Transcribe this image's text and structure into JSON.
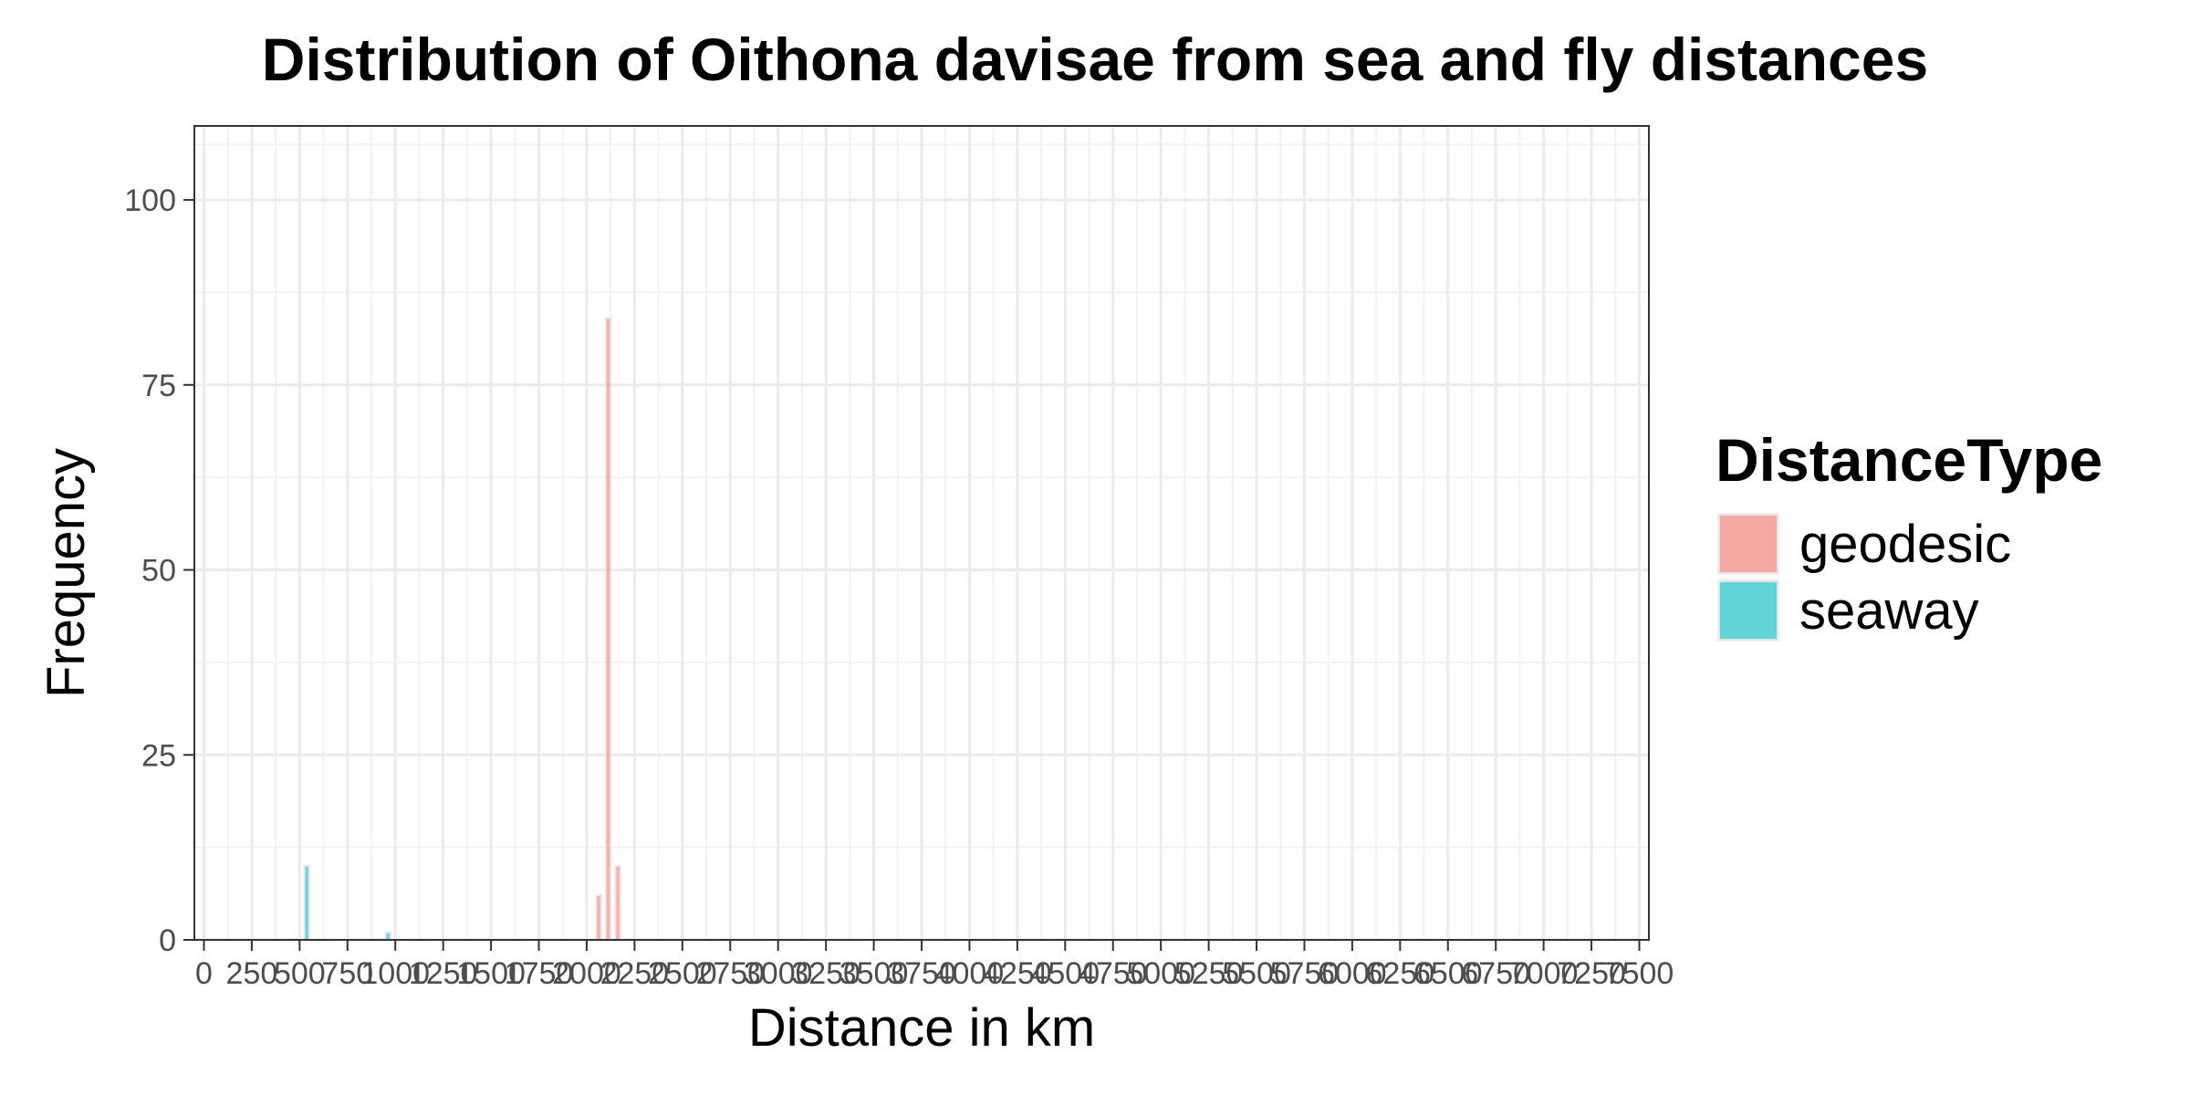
{
  "chart_data": {
    "type": "bar",
    "title": "Distribution of Oithona davisae from sea and fly distances",
    "xlabel": "Distance in km",
    "ylabel": "Frequency",
    "xlim": [
      -50,
      7550
    ],
    "ylim": [
      0,
      110
    ],
    "x_ticks": [
      0,
      250,
      500,
      750,
      1000,
      1250,
      1500,
      1750,
      2000,
      2250,
      2500,
      2750,
      3000,
      3250,
      3500,
      3750,
      4000,
      4250,
      4500,
      4750,
      5000,
      5250,
      5500,
      5750,
      6000,
      6250,
      6500,
      6750,
      7000,
      7250,
      7500
    ],
    "x_tick_labels": [
      "0",
      "250",
      "500",
      "750",
      "1000",
      "1250",
      "1500",
      "1750",
      "2000",
      "2250",
      "2500",
      "2750",
      "3000",
      "3250",
      "3500",
      "3750",
      "4000",
      "4250",
      "4500",
      "4750",
      "5000",
      "5250",
      "5500",
      "5750",
      "6000",
      "6250",
      "6500",
      "6750",
      "7000",
      "7250",
      "7500"
    ],
    "y_ticks": [
      0,
      25,
      50,
      75,
      100
    ],
    "bin_width": 25,
    "grid": true,
    "legend": {
      "title": "DistanceType",
      "position": "right",
      "entries": [
        {
          "name": "geodesic",
          "color": "#F8766D"
        },
        {
          "name": "seaway",
          "color": "#00BFC4"
        }
      ]
    },
    "series": [
      {
        "name": "geodesic",
        "color": "#F8766D",
        "bins": [
          {
            "x": 2062.5,
            "count": 6
          },
          {
            "x": 2112.5,
            "count": 84
          },
          {
            "x": 2162.5,
            "count": 10
          }
        ]
      },
      {
        "name": "seaway",
        "color": "#00BFC4",
        "bins": [
          {
            "x": 537.5,
            "count": 10
          },
          {
            "x": 962.5,
            "count": 1
          }
        ]
      }
    ]
  }
}
